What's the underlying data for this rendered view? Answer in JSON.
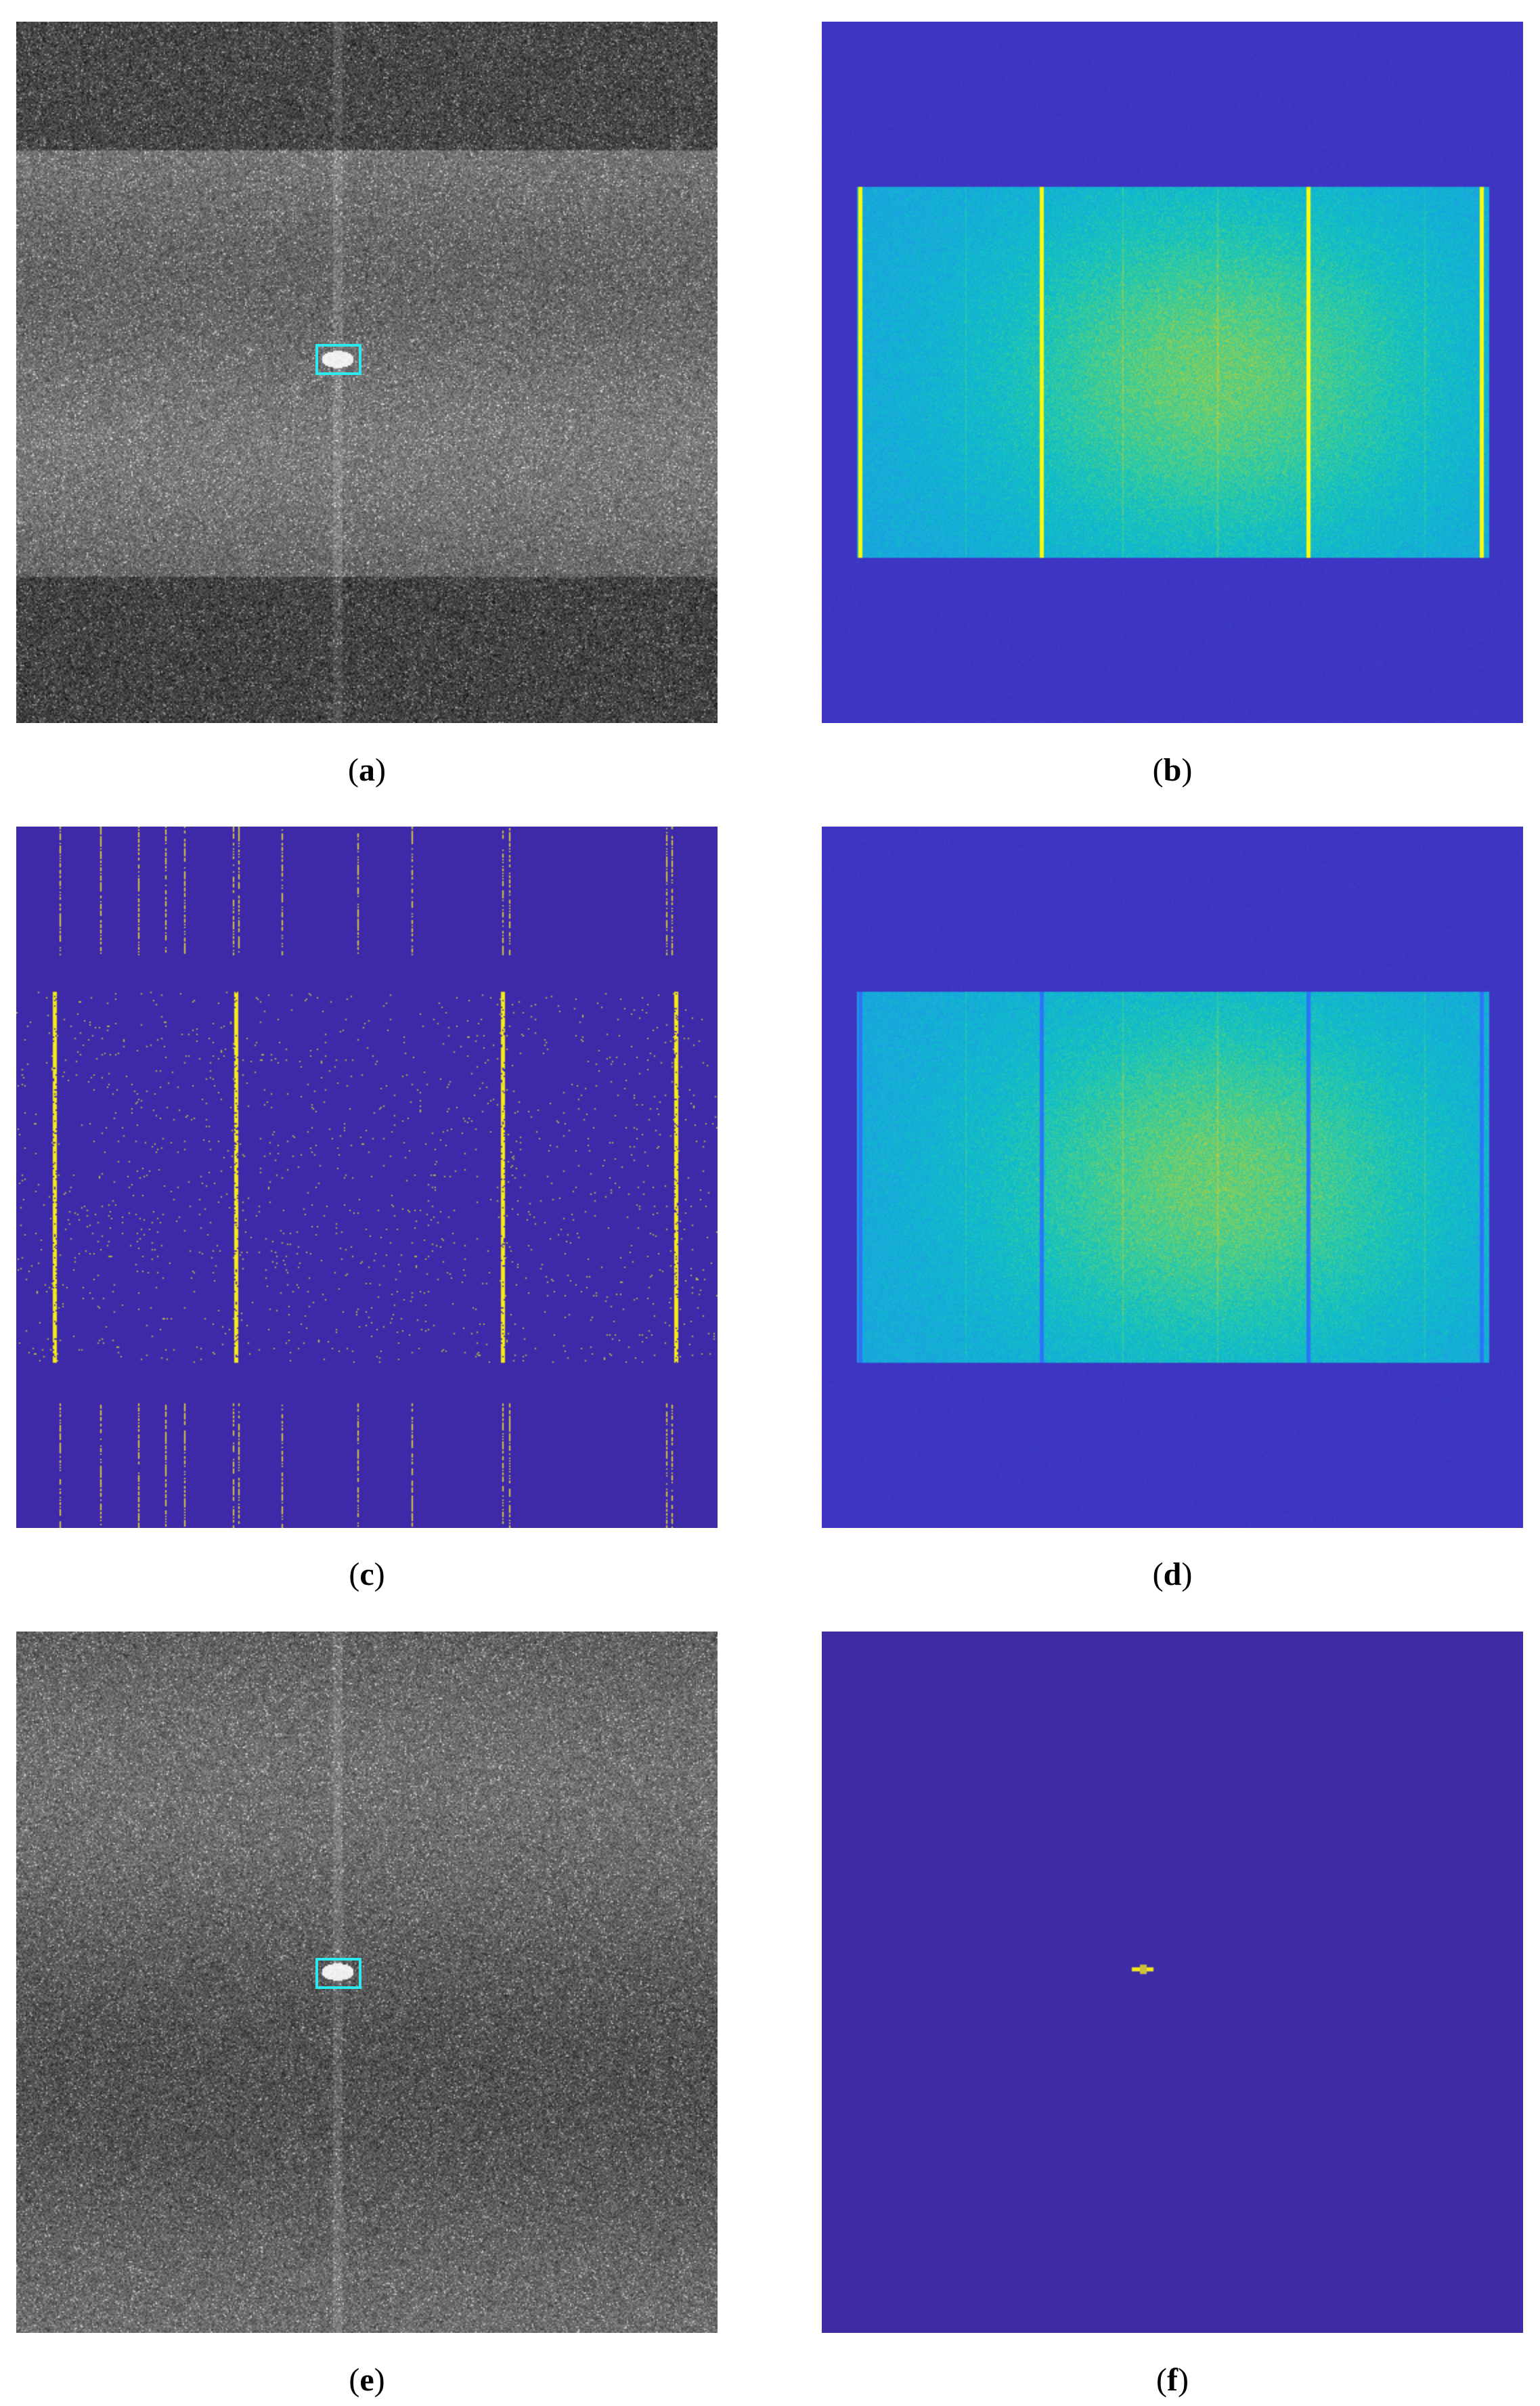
{
  "panels": [
    {
      "id": "a",
      "label": "a",
      "type": "grayscale-sar-image",
      "detection_box": true
    },
    {
      "id": "b",
      "label": "b",
      "type": "spectrum-heatmap",
      "colormap": "parula"
    },
    {
      "id": "c",
      "label": "c",
      "type": "sparse-component-heatmap",
      "colormap": "parula"
    },
    {
      "id": "d",
      "label": "d",
      "type": "spectrum-heatmap-filtered",
      "colormap": "parula"
    },
    {
      "id": "e",
      "label": "e",
      "type": "grayscale-sar-image",
      "detection_box": true
    },
    {
      "id": "f",
      "label": "f",
      "type": "target-map",
      "colormap": "parula"
    }
  ],
  "colors": {
    "background_blue": "#3d2ca6",
    "highlight_yellow": "#f5e81d",
    "mid_cyan": "#2aa9e2",
    "box_cyan": "#2ee8f0"
  }
}
